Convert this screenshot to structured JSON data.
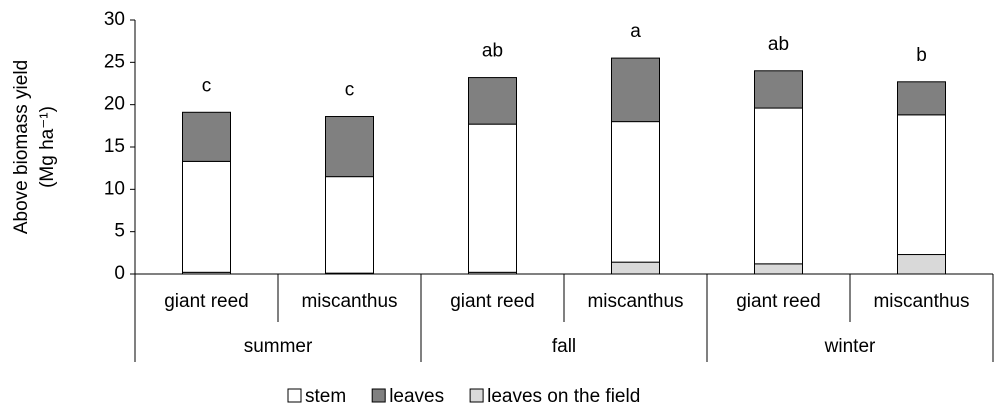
{
  "chart_data": {
    "type": "stacked_bar",
    "ylabel": "Above biomass yield",
    "ylabel_unit": "(Mg ha⁻¹)",
    "categories": [
      "giant reed",
      "miscanthus",
      "giant reed",
      "miscanthus",
      "giant reed",
      "miscanthus"
    ],
    "groups": [
      "summer",
      "fall",
      "winter"
    ],
    "series": [
      {
        "name": "leaves on the field",
        "color": "#d9d9d9",
        "values": [
          0.2,
          0.1,
          0.2,
          1.4,
          1.2,
          2.3
        ]
      },
      {
        "name": "stem",
        "color": "#ffffff",
        "values": [
          13.1,
          11.4,
          17.5,
          16.6,
          18.4,
          16.5
        ]
      },
      {
        "name": "leaves",
        "color": "#808080",
        "values": [
          5.8,
          7.1,
          5.5,
          7.5,
          4.4,
          3.9
        ]
      }
    ],
    "legend_order": [
      1,
      2,
      0
    ],
    "annotations": [
      "c",
      "c",
      "ab",
      "a",
      "ab",
      "b"
    ],
    "ylim": [
      0,
      30
    ],
    "yticks": [
      0,
      5,
      10,
      15,
      20,
      25,
      30
    ]
  }
}
